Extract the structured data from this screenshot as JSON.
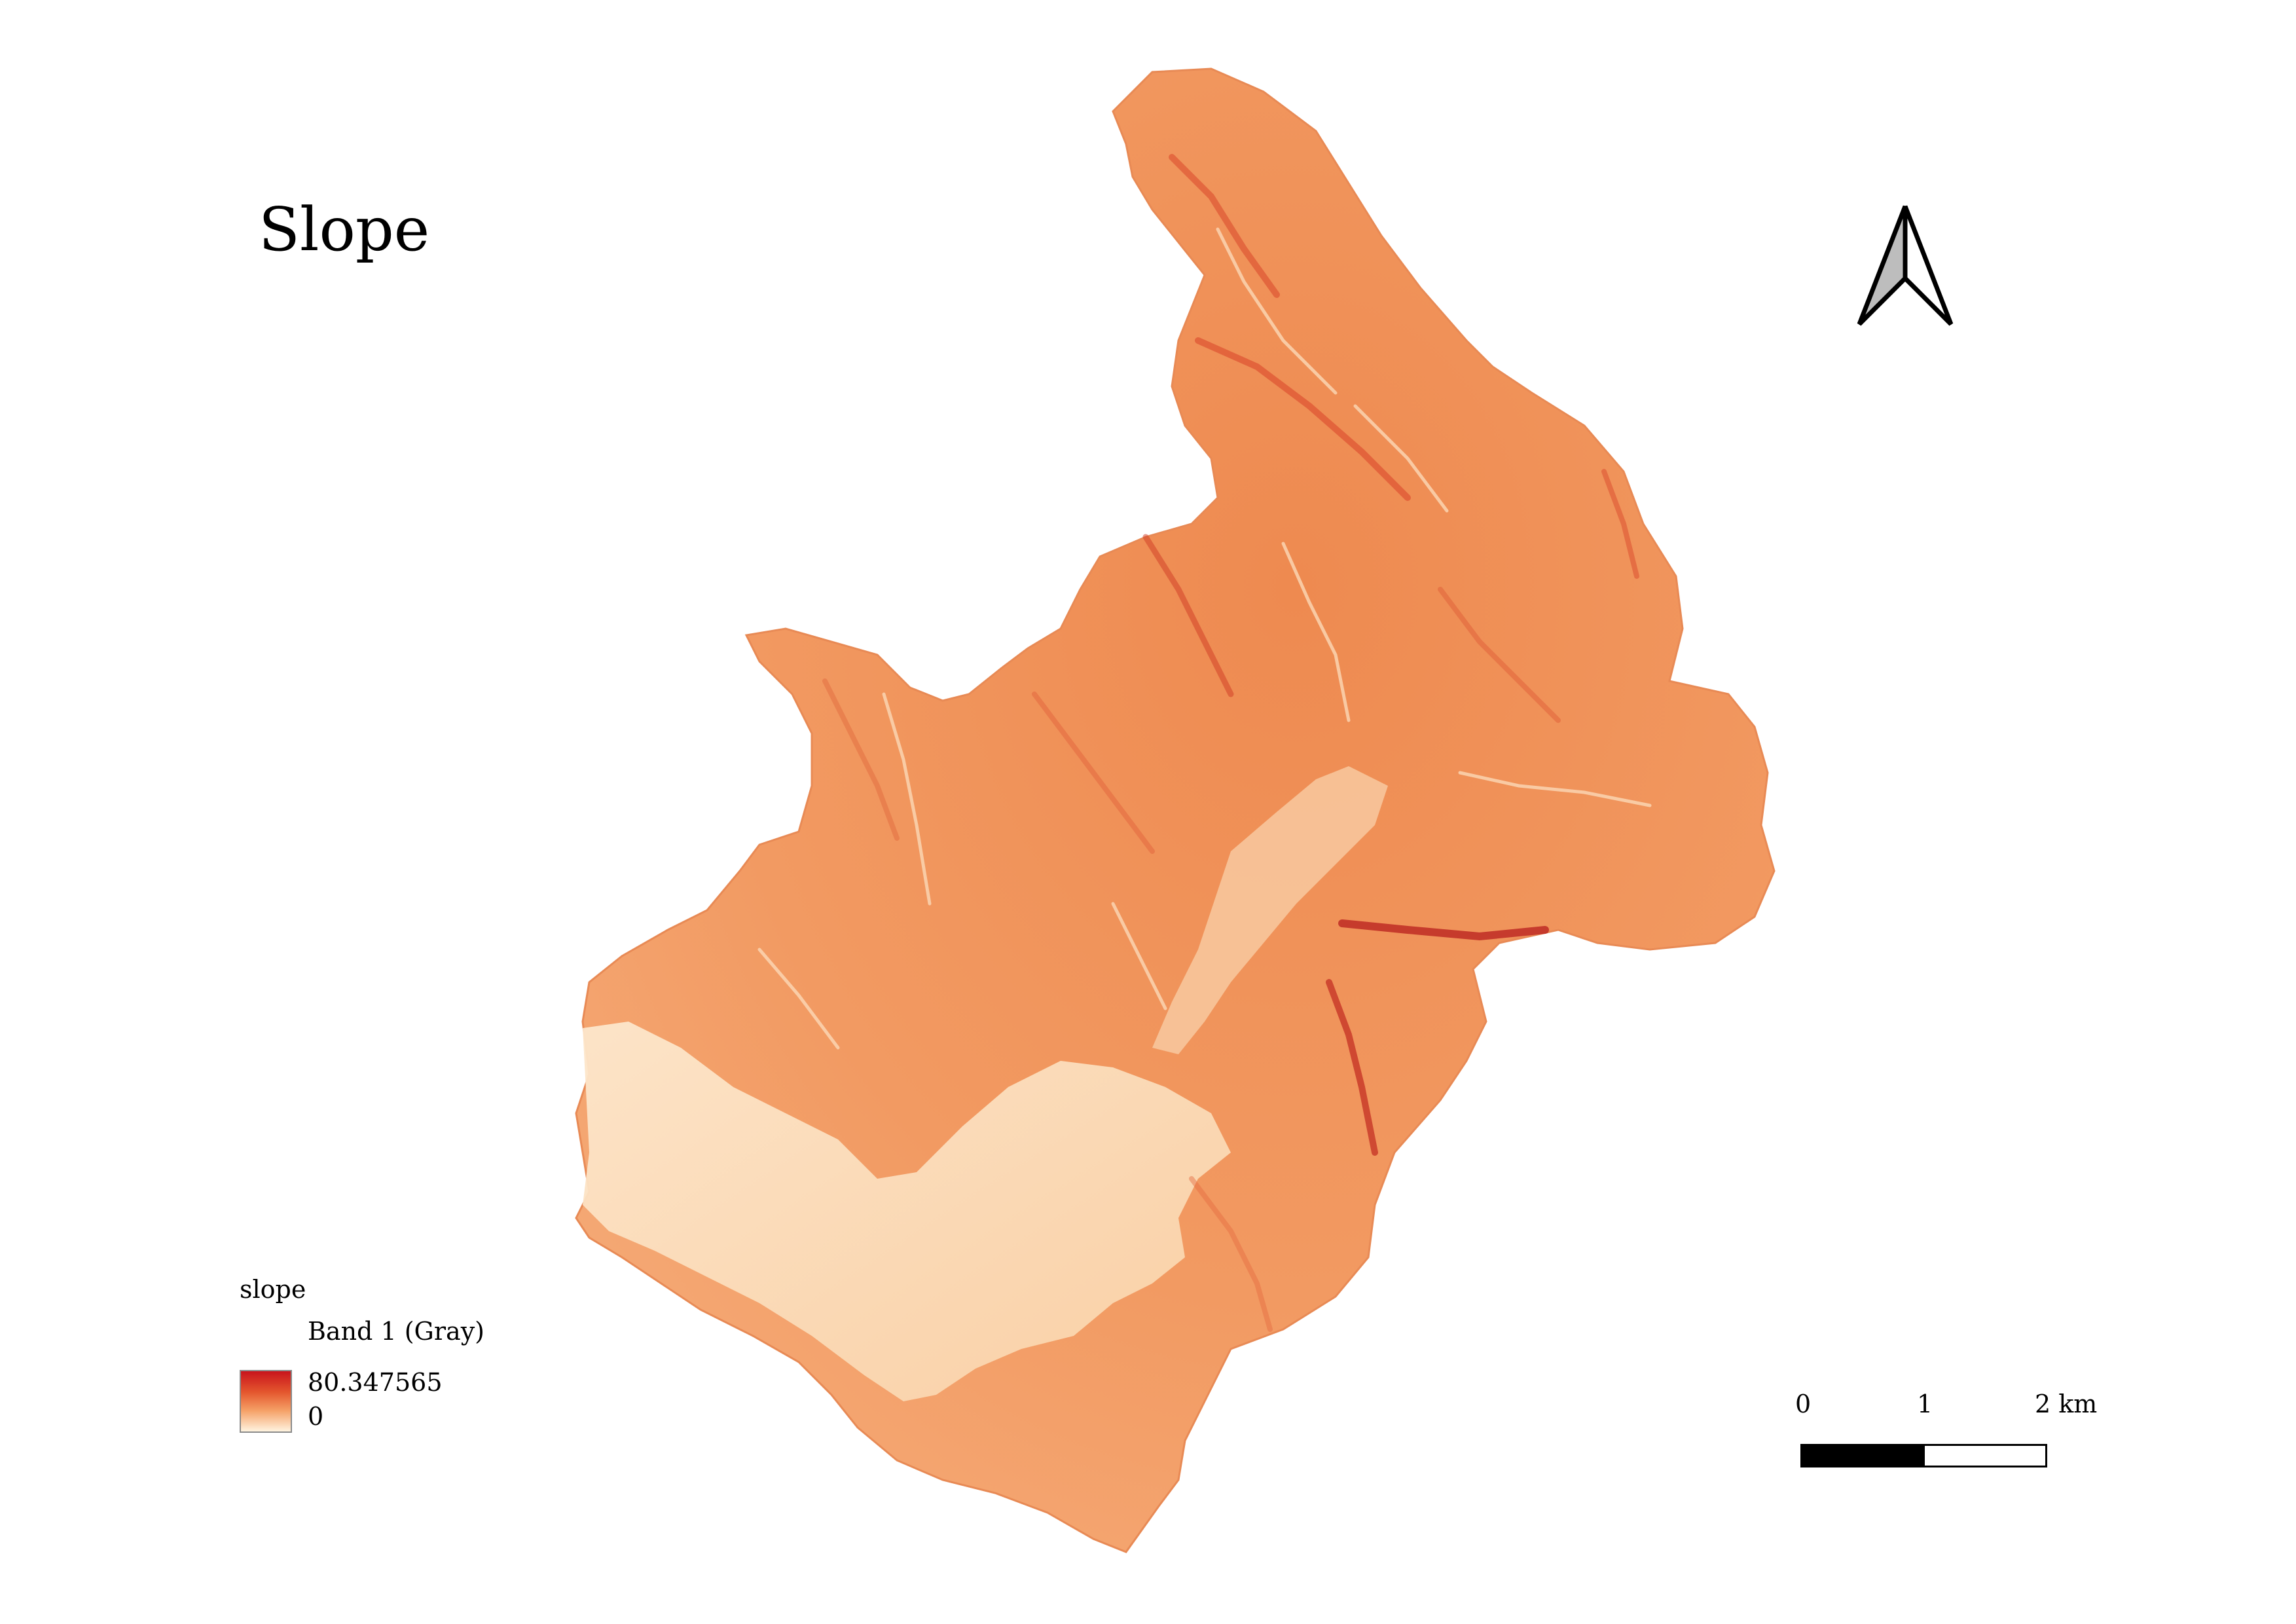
{
  "map": {
    "title": "Slope",
    "colors": {
      "background": "#ffffff",
      "ramp_low": "#fff4e0",
      "ramp_mid": "#f08850",
      "ramp_high": "#c8141c",
      "terrain_base": "#f29a62",
      "valley_floor": "#fde3c4"
    }
  },
  "north_arrow": {
    "icon": "north-arrow-icon"
  },
  "legend": {
    "layer_name": "slope",
    "band_label": "Band 1 (Gray)",
    "max_value": "80.347565",
    "min_value": "0"
  },
  "scale_bar": {
    "labels": [
      "0",
      "1",
      "2 km"
    ]
  }
}
